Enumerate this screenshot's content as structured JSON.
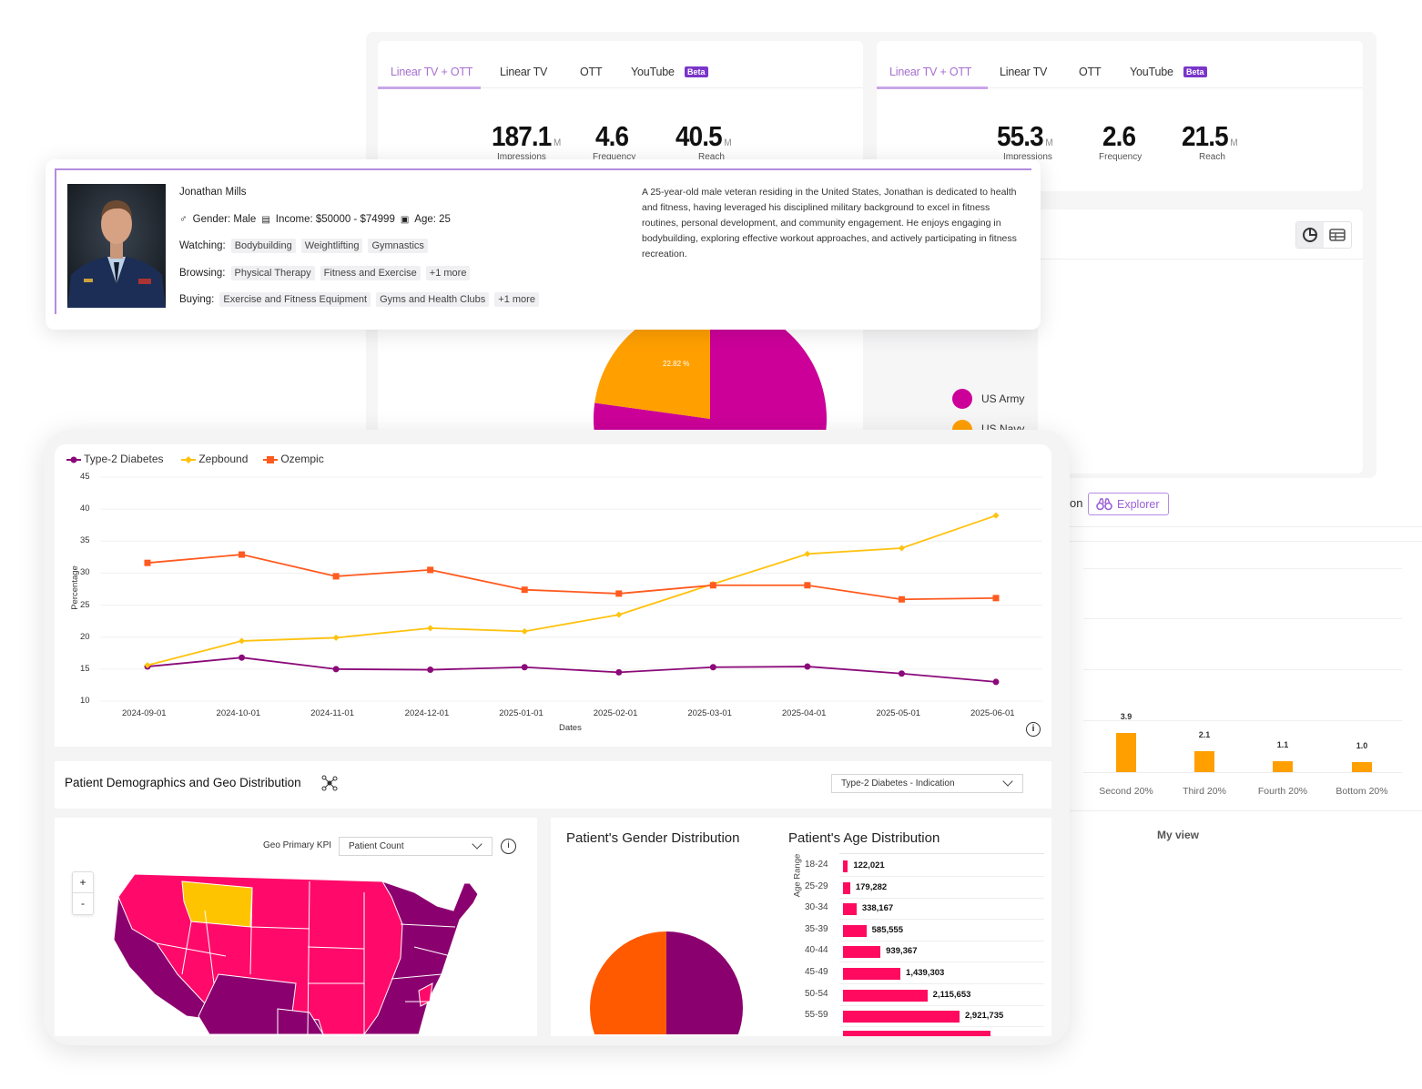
{
  "top_left_card": {
    "tabs": [
      "Linear TV + OTT",
      "Linear TV",
      "OTT",
      "YouTube"
    ],
    "active_tab": "Linear TV + OTT",
    "beta_badge": "Beta",
    "metrics": [
      {
        "value": "187.1",
        "unit": "M",
        "label": "Impressions"
      },
      {
        "value": "4.6",
        "unit": "",
        "label": "Frequency"
      },
      {
        "value": "40.5",
        "unit": "M",
        "label": "Reach"
      }
    ],
    "pie": {
      "slices": [
        {
          "name": "US Army",
          "percent": 77.18,
          "color": "#cc0099"
        },
        {
          "name": "US Navy",
          "percent": 22.82,
          "color": "#ff9f00"
        }
      ],
      "slice_label": "22.82 %"
    },
    "legend": [
      "US Army",
      "US Navy"
    ]
  },
  "top_right_card": {
    "tabs": [
      "Linear TV + OTT",
      "Linear TV",
      "OTT",
      "YouTube"
    ],
    "active_tab": "Linear TV + OTT",
    "beta_badge": "Beta",
    "metrics": [
      {
        "value": "55.3",
        "unit": "M",
        "label": "Impressions"
      },
      {
        "value": "2.6",
        "unit": "",
        "label": "Frequency"
      },
      {
        "value": "21.5",
        "unit": "M",
        "label": "Reach"
      }
    ]
  },
  "view_toggle": {
    "icons": [
      "pie-chart-icon",
      "table-icon"
    ]
  },
  "quintile_card": {
    "title_fragment": "on",
    "explorer_button": "Explorer",
    "categories": [
      "Second 20%",
      "Third 20%",
      "Fourth 20%",
      "Bottom 20%"
    ],
    "values": [
      3.9,
      2.1,
      1.1,
      1.0
    ],
    "value_labels": [
      "3.9",
      "2.1",
      "1.1",
      "1.0"
    ],
    "footer": "My view",
    "color": "#ff9f00"
  },
  "profile": {
    "name": "Jonathan Mills",
    "gender": "Gender: Male",
    "income": "Income: $50000 - $74999",
    "age": "Age: 25",
    "watching_label": "Watching:",
    "watching": [
      "Bodybuilding",
      "Weightlifting",
      "Gymnastics"
    ],
    "browsing_label": "Browsing:",
    "browsing": [
      "Physical Therapy",
      "Fitness and Exercise",
      "+1 more"
    ],
    "buying_label": "Buying:",
    "buying": [
      "Exercise and Fitness Equipment",
      "Gyms and Health Clubs",
      "+1 more"
    ],
    "bio": "A 25-year-old male veteran residing in the United States, Jonathan is dedicated to health and fitness, having leveraged his disciplined military background to excel in fitness routines, personal development, and community engagement. He enjoys engaging in bodybuilding, exploring effective workout approaches, and actively participating in fitness recreation."
  },
  "chart_data": [
    {
      "type": "line",
      "xlabel": "Dates",
      "ylabel": "Percentage",
      "ylim": [
        10,
        45
      ],
      "yticks": [
        "45",
        "40",
        "35",
        "30",
        "25",
        "20",
        "15",
        "10"
      ],
      "grid": true,
      "legend_position": "top-left",
      "x": [
        "2024-09-01",
        "2024-10-01",
        "2024-11-01",
        "2024-12-01",
        "2025-01-01",
        "2025-02-01",
        "2025-03-01",
        "2025-04-01",
        "2025-05-01",
        "2025-06-01"
      ],
      "series": [
        {
          "name": "Type-2 Diabetes",
          "color": "#8b0a7a",
          "marker": "circle",
          "values": [
            15.4,
            16.8,
            15.0,
            14.9,
            15.3,
            14.5,
            15.3,
            15.4,
            14.3,
            13.0
          ]
        },
        {
          "name": "Zepbound",
          "color": "#ffc20e",
          "marker": "diamond",
          "values": [
            15.6,
            19.4,
            19.9,
            21.4,
            20.9,
            23.5,
            28.3,
            33.0,
            33.9,
            39.0
          ]
        },
        {
          "name": "Ozempic",
          "color": "#ff5a1f",
          "marker": "square",
          "values": [
            31.6,
            32.9,
            29.5,
            30.5,
            27.4,
            26.8,
            28.1,
            28.1,
            25.9,
            26.1
          ]
        }
      ]
    },
    {
      "type": "bar",
      "title": "Patient's Age Distribution",
      "ylabel": "Age Range",
      "orientation": "horizontal",
      "categories": [
        "18-24",
        "25-29",
        "30-34",
        "35-39",
        "40-44",
        "45-49",
        "50-54",
        "55-59"
      ],
      "values": [
        122021,
        179282,
        338167,
        585555,
        939367,
        1439303,
        2115653,
        2921735
      ],
      "value_labels": [
        "122,021",
        "179,282",
        "338,167",
        "585,555",
        "939,367",
        "1,439,303",
        "2,115,653",
        "2,921,735"
      ],
      "color": "#ff0a5f"
    },
    {
      "type": "pie",
      "title": "Patient's Gender Distribution",
      "slices": [
        {
          "percent": 50,
          "color": "#8b006f"
        },
        {
          "percent": 50,
          "color": "#ff5a00"
        }
      ]
    }
  ],
  "demographics": {
    "title": "Patient Demographics and Geo Distribution",
    "indication_select": "Type-2 Diabetes - Indication",
    "geo_kpi_label": "Geo Primary KPI",
    "geo_kpi_select": "Patient Count",
    "zoom_in": "+",
    "zoom_out": "-",
    "map_colors": {
      "high": "#8b006f",
      "mid": "#ff0a6a",
      "low": "#ffc400"
    }
  }
}
